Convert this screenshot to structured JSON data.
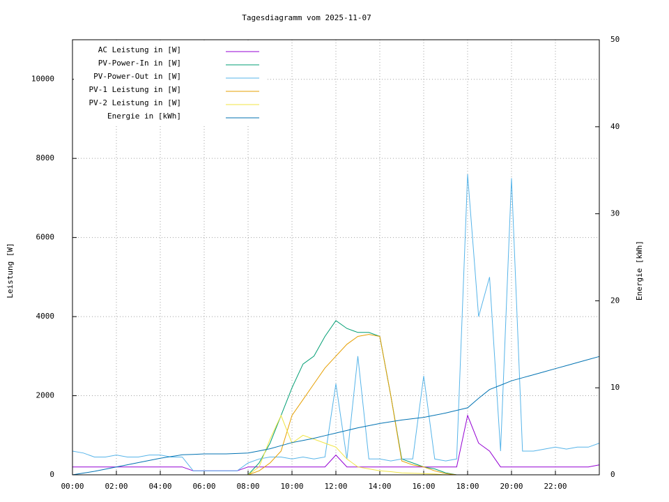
{
  "chart_data": {
    "type": "line",
    "title": "Tagesdiagramm vom 2025-11-07",
    "y_label": "Leistung [W]",
    "y2_label": "Energie [kWh]",
    "x": [
      0,
      0.5,
      1,
      1.5,
      2,
      2.5,
      3,
      3.5,
      4,
      4.5,
      5,
      5.5,
      6,
      6.5,
      7,
      7.5,
      8,
      8.5,
      9,
      9.5,
      10,
      10.5,
      11,
      11.5,
      12,
      12.5,
      13,
      13.5,
      14,
      14.5,
      15,
      15.5,
      16,
      16.5,
      17,
      17.5,
      18,
      18.5,
      19,
      19.5,
      20,
      20.5,
      21,
      21.5,
      22,
      22.5,
      23,
      23.5,
      24
    ],
    "xlim": [
      0,
      24
    ],
    "xticks": [
      {
        "value": 0,
        "label": "00:00"
      },
      {
        "value": 2,
        "label": "02:00"
      },
      {
        "value": 4,
        "label": "04:00"
      },
      {
        "value": 6,
        "label": "06:00"
      },
      {
        "value": 8,
        "label": "08:00"
      },
      {
        "value": 10,
        "label": "10:00"
      },
      {
        "value": 12,
        "label": "12:00"
      },
      {
        "value": 14,
        "label": "14:00"
      },
      {
        "value": 16,
        "label": "16:00"
      },
      {
        "value": 18,
        "label": "18:00"
      },
      {
        "value": 20,
        "label": "20:00"
      },
      {
        "value": 22,
        "label": "22:00"
      }
    ],
    "ylim": [
      0,
      11000
    ],
    "yticks": [
      0,
      2000,
      4000,
      6000,
      8000,
      10000
    ],
    "y2lim": [
      0,
      50
    ],
    "y2ticks": [
      0,
      10,
      20,
      30,
      40,
      50
    ],
    "grid": true,
    "legend": "top-left",
    "series": [
      {
        "name": "AC Leistung in [W]",
        "color": "#9400d3",
        "values": [
          200,
          200,
          200,
          200,
          200,
          200,
          200,
          200,
          200,
          200,
          200,
          100,
          100,
          100,
          100,
          100,
          200,
          200,
          200,
          200,
          200,
          200,
          200,
          200,
          500,
          200,
          200,
          200,
          200,
          200,
          200,
          200,
          200,
          200,
          200,
          200,
          1500,
          800,
          600,
          200,
          200,
          200,
          200,
          200,
          200,
          200,
          200,
          200,
          250
        ]
      },
      {
        "name": "PV-Power-In in [W]",
        "color": "#009e73",
        "values": [
          0,
          0,
          0,
          0,
          0,
          0,
          0,
          0,
          0,
          0,
          0,
          0,
          0,
          0,
          0,
          0,
          0,
          300,
          800,
          1500,
          2200,
          2800,
          3000,
          3500,
          3900,
          3700,
          3600,
          3600,
          3500,
          2000,
          400,
          300,
          200,
          150,
          50,
          0,
          0,
          0,
          0,
          0,
          0,
          0,
          0,
          0,
          0,
          0,
          0,
          0,
          0
        ]
      },
      {
        "name": "PV-Power-Out in [W]",
        "color": "#56b4e9",
        "values": [
          600,
          550,
          450,
          450,
          500,
          450,
          450,
          500,
          500,
          450,
          450,
          100,
          100,
          100,
          100,
          100,
          300,
          400,
          450,
          450,
          400,
          450,
          400,
          450,
          2300,
          400,
          3000,
          400,
          400,
          350,
          400,
          400,
          2500,
          400,
          350,
          400,
          7600,
          4000,
          5000,
          600,
          7500,
          600,
          600,
          650,
          700,
          650,
          700,
          700,
          800
        ]
      },
      {
        "name": "PV-1 Leistung in [W]",
        "color": "#e69f00",
        "values": [
          0,
          0,
          0,
          0,
          0,
          0,
          0,
          0,
          0,
          0,
          0,
          0,
          0,
          0,
          0,
          0,
          0,
          100,
          300,
          600,
          1500,
          1900,
          2300,
          2700,
          3000,
          3300,
          3500,
          3550,
          3500,
          2000,
          350,
          250,
          200,
          100,
          30,
          0,
          0,
          0,
          0,
          0,
          0,
          0,
          0,
          0,
          0,
          0,
          0,
          0,
          0
        ]
      },
      {
        "name": "PV-2 Leistung in [W]",
        "color": "#f0e442",
        "values": [
          0,
          0,
          0,
          0,
          0,
          0,
          0,
          0,
          0,
          0,
          0,
          0,
          0,
          0,
          0,
          0,
          0,
          200,
          900,
          1500,
          800,
          1000,
          900,
          800,
          700,
          400,
          200,
          150,
          100,
          80,
          50,
          40,
          30,
          20,
          0,
          0,
          0,
          0,
          0,
          0,
          0,
          0,
          0,
          0,
          0,
          0,
          0,
          0,
          0
        ]
      },
      {
        "name": "Energie in [kWh]",
        "color": "#0072b2",
        "axis": "y2",
        "values": [
          0,
          0.2,
          0.4,
          0.65,
          0.9,
          1.15,
          1.4,
          1.65,
          1.9,
          2.1,
          2.3,
          2.35,
          2.4,
          2.4,
          2.4,
          2.45,
          2.5,
          2.75,
          3.0,
          3.35,
          3.7,
          3.95,
          4.2,
          4.5,
          4.8,
          5.1,
          5.4,
          5.65,
          5.9,
          6.1,
          6.3,
          6.45,
          6.6,
          6.85,
          7.1,
          7.4,
          7.7,
          8.8,
          9.8,
          10.3,
          10.8,
          11.15,
          11.5,
          11.85,
          12.2,
          12.55,
          12.9,
          13.25,
          13.6
        ]
      }
    ]
  }
}
